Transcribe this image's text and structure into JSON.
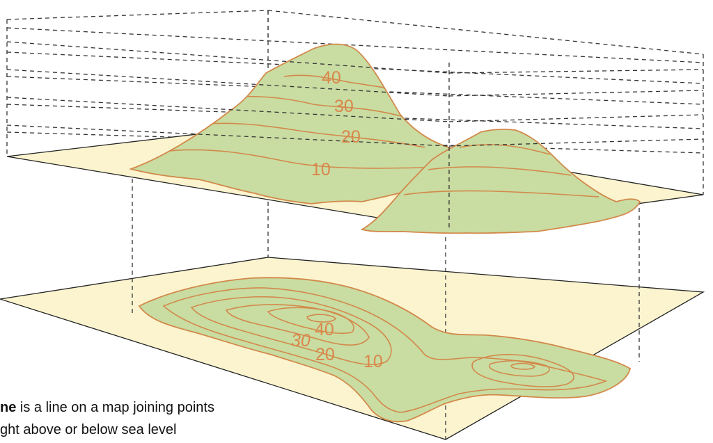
{
  "colors": {
    "land": "#c9dca2",
    "contour": "#d2894a",
    "label": "#d9874b",
    "plane": "#fbf4cf",
    "frame": "#333333",
    "caption": "#111111"
  },
  "model_labels": [
    "40",
    "30",
    "20",
    "10"
  ],
  "map_labels": [
    "30",
    "40",
    "20",
    "10"
  ],
  "caption": {
    "term": "ne",
    "line1_rest": " is a line on a map joining points",
    "line2": "ght above or below sea level"
  }
}
